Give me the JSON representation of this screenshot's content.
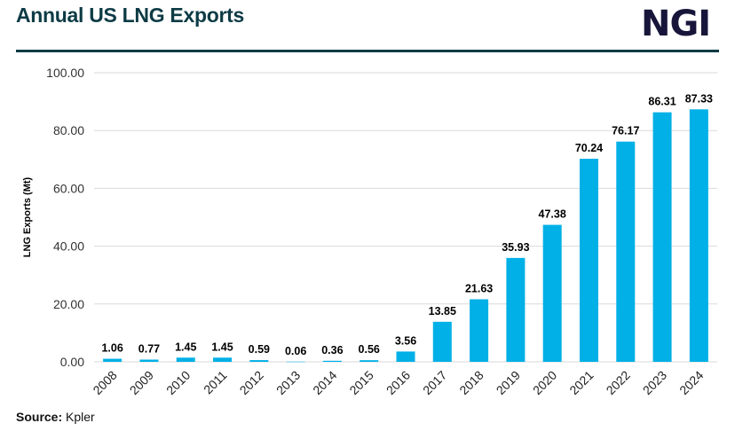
{
  "header": {
    "title": "Annual US LNG Exports",
    "logo_text": "NGI"
  },
  "source": {
    "label": "Source:",
    "value": "Kpler"
  },
  "colors": {
    "bar": "#00b0e6",
    "title": "#0d3b45",
    "logo": "#17163a"
  },
  "chart_data": {
    "type": "bar",
    "title": "",
    "xlabel": "",
    "ylabel": "LNG Exports (Mt)",
    "ylim": [
      0,
      100
    ],
    "yticks": [
      "0.00",
      "20.00",
      "40.00",
      "60.00",
      "80.00",
      "100.00"
    ],
    "grid": true,
    "categories": [
      "2008",
      "2009",
      "2010",
      "2011",
      "2012",
      "2013",
      "2014",
      "2015",
      "2016",
      "2017",
      "2018",
      "2019",
      "2020",
      "2021",
      "2022",
      "2023",
      "2024"
    ],
    "values": [
      1.06,
      0.77,
      1.45,
      1.45,
      0.59,
      0.06,
      0.36,
      0.56,
      3.56,
      13.85,
      21.63,
      35.93,
      47.38,
      70.24,
      76.17,
      86.31,
      87.33
    ],
    "labels": [
      "1.06",
      "0.77",
      "1.45",
      "1.45",
      "0.59",
      "0.06",
      "0.36",
      "0.56",
      "3.56",
      "13.85",
      "21.63",
      "35.93",
      "47.38",
      "70.24",
      "76.17",
      "86.31",
      "87.33"
    ]
  }
}
